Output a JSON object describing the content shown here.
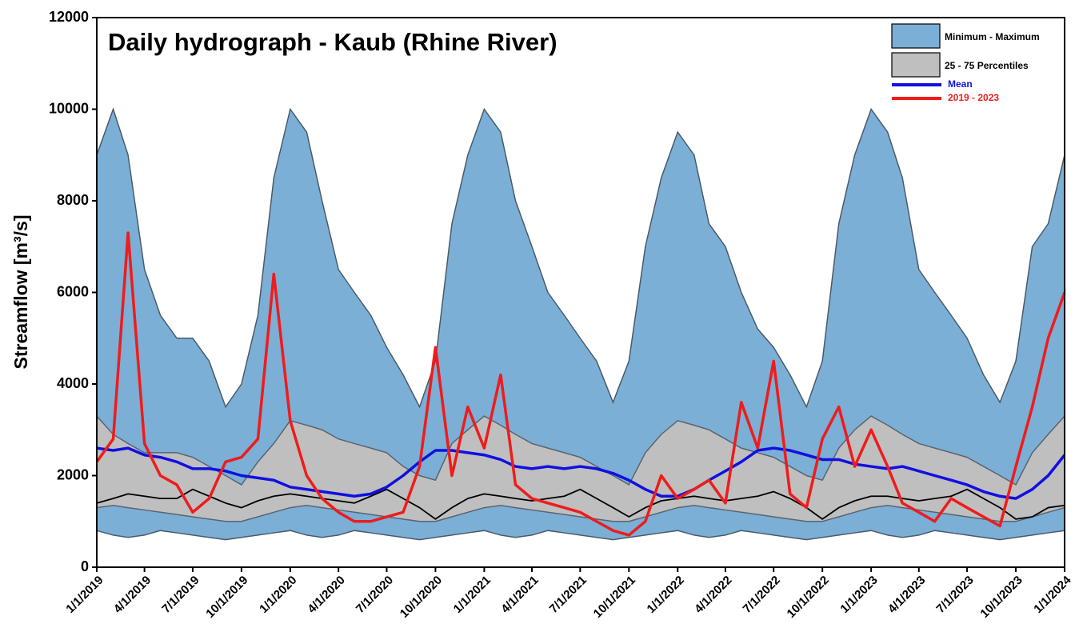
{
  "chart_data": {
    "type": "line",
    "title": "Daily hydrograph -  Kaub (Rhine River)",
    "y_label": "Streamflow [m³/s]",
    "xlim": [
      "1/1/2019",
      "1/1/2024"
    ],
    "xticks": [
      "1/1/2019",
      "4/1/2019",
      "7/1/2019",
      "10/1/2019",
      "1/1/2020",
      "4/1/2020",
      "7/1/2020",
      "10/1/2020",
      "1/1/2021",
      "4/1/2021",
      "7/1/2021",
      "10/1/2021",
      "1/1/2022",
      "4/1/2022",
      "7/1/2022",
      "10/1/2022",
      "1/1/2023",
      "4/1/2023",
      "7/1/2023",
      "10/1/2023",
      "1/1/2024"
    ],
    "ylim": [
      0,
      12000
    ],
    "yticks": [
      0,
      2000,
      4000,
      6000,
      8000,
      10000,
      12000
    ],
    "legend": "upper right",
    "x": [
      "1/1/2019",
      "2/1/2019",
      "3/1/2019",
      "4/1/2019",
      "5/1/2019",
      "6/1/2019",
      "7/1/2019",
      "8/1/2019",
      "9/1/2019",
      "10/1/2019",
      "11/1/2019",
      "12/1/2019",
      "1/1/2020",
      "2/1/2020",
      "3/1/2020",
      "4/1/2020",
      "5/1/2020",
      "6/1/2020",
      "7/1/2020",
      "8/1/2020",
      "9/1/2020",
      "10/1/2020",
      "11/1/2020",
      "12/1/2020",
      "1/1/2021",
      "2/1/2021",
      "3/1/2021",
      "4/1/2021",
      "5/1/2021",
      "6/1/2021",
      "7/1/2021",
      "8/1/2021",
      "9/1/2021",
      "10/1/2021",
      "11/1/2021",
      "12/1/2021",
      "1/1/2022",
      "2/1/2022",
      "3/1/2022",
      "4/1/2022",
      "5/1/2022",
      "6/1/2022",
      "7/1/2022",
      "8/1/2022",
      "9/1/2022",
      "10/1/2022",
      "11/1/2022",
      "12/1/2022",
      "1/1/2023",
      "2/1/2023",
      "3/1/2023",
      "4/1/2023",
      "5/1/2023",
      "6/1/2023",
      "7/1/2023",
      "8/1/2023",
      "9/1/2023",
      "10/1/2023",
      "11/1/2023",
      "12/1/2023",
      "1/1/2024"
    ],
    "bands": [
      {
        "name": "Minimum - Maximum",
        "color": "#7bafd6",
        "edge": "#4a5a6a",
        "low": [
          800,
          700,
          650,
          700,
          800,
          750,
          700,
          650,
          600,
          650,
          700,
          750,
          800,
          700,
          650,
          700,
          800,
          750,
          700,
          650,
          600,
          650,
          700,
          750,
          800,
          700,
          650,
          700,
          800,
          750,
          700,
          650,
          600,
          650,
          700,
          750,
          800,
          700,
          650,
          700,
          800,
          750,
          700,
          650,
          600,
          650,
          700,
          750,
          800,
          700,
          650,
          700,
          800,
          750,
          700,
          650,
          600,
          650,
          700,
          750,
          800
        ],
        "high": [
          9000,
          10000,
          9000,
          6500,
          5500,
          5000,
          5000,
          4500,
          3500,
          4000,
          5500,
          8500,
          10000,
          9500,
          8000,
          6500,
          6000,
          5500,
          4800,
          4200,
          3500,
          4500,
          7500,
          9000,
          10000,
          9500,
          8000,
          7000,
          6000,
          5500,
          5000,
          4500,
          3600,
          4500,
          7000,
          8500,
          9500,
          9000,
          7500,
          7000,
          6000,
          5200,
          4800,
          4200,
          3500,
          4500,
          7500,
          9000,
          10000,
          9500,
          8500,
          6500,
          6000,
          5500,
          5000,
          4200,
          3600,
          4500,
          7000,
          7500,
          9000
        ]
      },
      {
        "name": "25 - 75 Percentiles",
        "color": "#bfbfbf",
        "edge": "#5a6470",
        "low": [
          1300,
          1350,
          1300,
          1250,
          1200,
          1150,
          1100,
          1050,
          1000,
          1000,
          1100,
          1200,
          1300,
          1350,
          1300,
          1250,
          1200,
          1150,
          1100,
          1050,
          1000,
          1000,
          1100,
          1200,
          1300,
          1350,
          1300,
          1250,
          1200,
          1150,
          1100,
          1050,
          1000,
          1000,
          1100,
          1200,
          1300,
          1350,
          1300,
          1250,
          1200,
          1150,
          1100,
          1050,
          1000,
          1000,
          1100,
          1200,
          1300,
          1350,
          1300,
          1250,
          1200,
          1150,
          1100,
          1050,
          1000,
          1000,
          1100,
          1200,
          1300
        ],
        "high": [
          3300,
          2900,
          2700,
          2500,
          2500,
          2500,
          2400,
          2200,
          2000,
          1800,
          2300,
          2700,
          3200,
          3100,
          3000,
          2800,
          2700,
          2600,
          2500,
          2200,
          2000,
          1900,
          2700,
          3000,
          3300,
          3100,
          2900,
          2700,
          2600,
          2500,
          2400,
          2200,
          2000,
          1800,
          2500,
          2900,
          3200,
          3100,
          3000,
          2800,
          2600,
          2500,
          2400,
          2200,
          2000,
          1900,
          2600,
          3000,
          3300,
          3100,
          2900,
          2700,
          2600,
          2500,
          2400,
          2200,
          2000,
          1800,
          2500,
          2900,
          3300
        ]
      }
    ],
    "series": [
      {
        "color": "#000000",
        "values": [
          1400,
          1500,
          1600,
          1550,
          1500,
          1500,
          1700,
          1550,
          1400,
          1300,
          1450,
          1550,
          1600,
          1550,
          1500,
          1450,
          1400,
          1550,
          1700,
          1500,
          1300,
          1050,
          1300,
          1500,
          1600,
          1550,
          1500,
          1450,
          1500,
          1550,
          1700,
          1500,
          1300,
          1100,
          1300,
          1450,
          1500,
          1550,
          1500,
          1450,
          1500,
          1550,
          1650,
          1500,
          1300,
          1050,
          1300,
          1450,
          1550,
          1550,
          1500,
          1450,
          1500,
          1550,
          1700,
          1500,
          1300,
          1050,
          1100,
          1300,
          1350
        ]
      },
      {
        "name": "Mean",
        "color": "#1010e0",
        "values": [
          2600,
          2550,
          2600,
          2450,
          2400,
          2300,
          2150,
          2150,
          2100,
          2000,
          1950,
          1900,
          1750,
          1700,
          1650,
          1600,
          1550,
          1600,
          1750,
          2000,
          2300,
          2550,
          2550,
          2500,
          2450,
          2350,
          2200,
          2150,
          2200,
          2150,
          2200,
          2150,
          2050,
          1900,
          1700,
          1550,
          1550,
          1700,
          1900,
          2100,
          2300,
          2550,
          2600,
          2550,
          2450,
          2350,
          2350,
          2250,
          2200,
          2150,
          2200,
          2100,
          2000,
          1900,
          1800,
          1650,
          1550,
          1500,
          1700,
          2000,
          2450
        ]
      },
      {
        "name": "2019 - 2023",
        "color": "#ee1c1c",
        "values": [
          2300,
          2800,
          7300,
          2700,
          2000,
          1800,
          1200,
          1500,
          2300,
          2400,
          2800,
          6400,
          3200,
          2000,
          1500,
          1200,
          1000,
          1000,
          1100,
          1200,
          2200,
          4800,
          2000,
          3500,
          2600,
          4200,
          1800,
          1500,
          1400,
          1300,
          1200,
          1000,
          800,
          700,
          1000,
          2000,
          1500,
          1700,
          1900,
          1400,
          3600,
          2600,
          4500,
          1600,
          1300,
          2800,
          3500,
          2200,
          3000,
          2200,
          1400,
          1200,
          1000,
          1500,
          1300,
          1100,
          900,
          2200,
          3500,
          5000,
          6000
        ]
      }
    ]
  }
}
